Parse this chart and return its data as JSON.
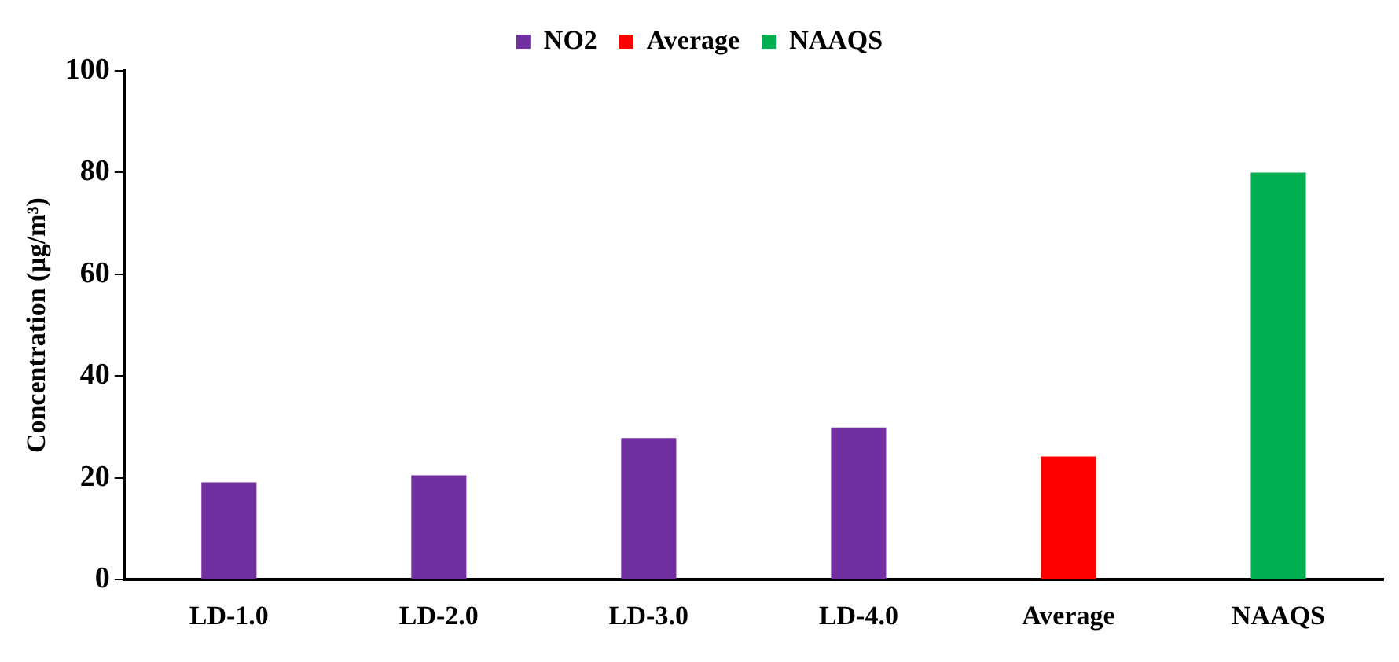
{
  "chart_data": {
    "type": "bar",
    "ylabel": "Concentration (μg/m³)",
    "categories": [
      "LD-1.0",
      "LD-2.0",
      "LD-3.0",
      "LD-4.0",
      "Average",
      "NAAQS"
    ],
    "series": [
      {
        "name": "NO2",
        "color": "#7030a0",
        "values": [
          19.1,
          20.5,
          27.8,
          29.9,
          null,
          null
        ]
      },
      {
        "name": "Average",
        "color": "#ff0000",
        "values": [
          null,
          null,
          null,
          null,
          24.2,
          null
        ]
      },
      {
        "name": "NAAQS",
        "color": "#00b050",
        "values": [
          null,
          null,
          null,
          null,
          null,
          80
        ]
      }
    ],
    "ylim": [
      0,
      100
    ],
    "yticks": [
      0,
      20,
      40,
      60,
      80,
      100
    ],
    "grid": false,
    "legend": "top"
  }
}
